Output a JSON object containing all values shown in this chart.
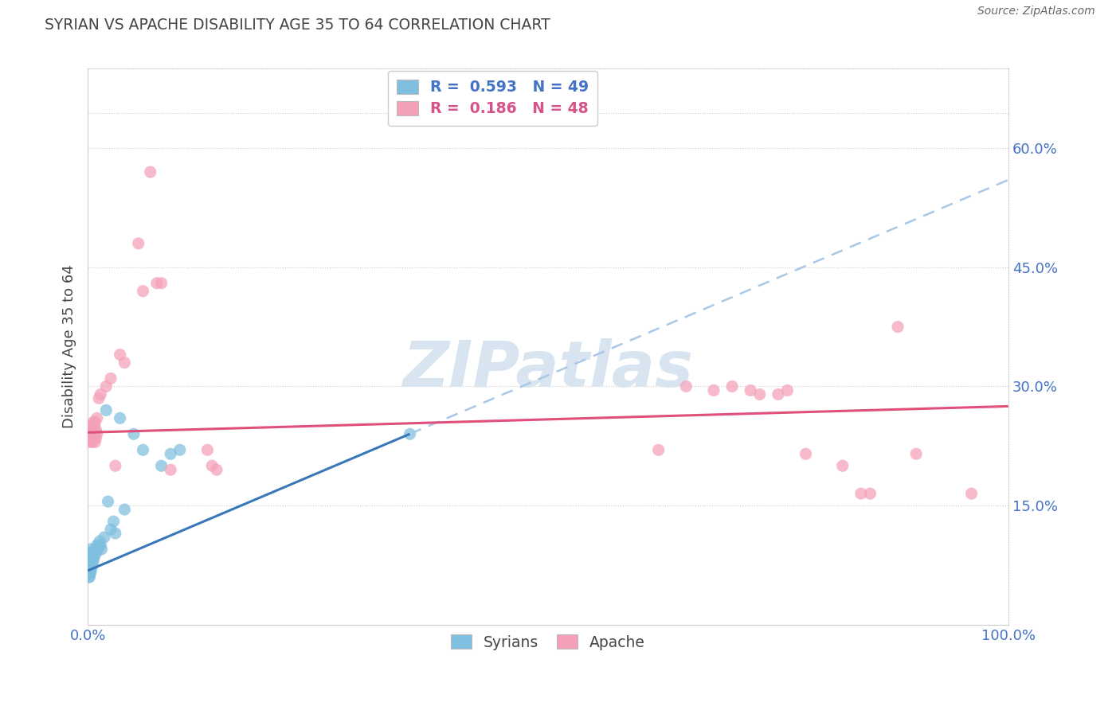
{
  "title": "SYRIAN VS APACHE DISABILITY AGE 35 TO 64 CORRELATION CHART",
  "source": "Source: ZipAtlas.com",
  "ylabel": "Disability Age 35 to 64",
  "xlim": [
    0.0,
    1.0
  ],
  "ylim": [
    0.0,
    0.7
  ],
  "xticks": [
    0.0,
    0.25,
    0.5,
    0.75,
    1.0
  ],
  "xticklabels": [
    "0.0%",
    "",
    "",
    "",
    "100.0%"
  ],
  "ytick_positions": [
    0.15,
    0.3,
    0.45,
    0.6
  ],
  "ytick_labels": [
    "15.0%",
    "30.0%",
    "45.0%",
    "60.0%"
  ],
  "legend_r_syrian": "0.593",
  "legend_n_syrian": "49",
  "legend_r_apache": "0.186",
  "legend_n_apache": "48",
  "syrian_color": "#7fbfdf",
  "apache_color": "#f4a0b8",
  "trendline_syrian_solid_color": "#3878b8",
  "trendline_apache_color": "#e0507a",
  "trendline_dashed_color": "#a8c8e8",
  "background_color": "#ffffff",
  "grid_color": "#cccccc",
  "title_color": "#444444",
  "source_color": "#666666",
  "tick_color": "#4472c4",
  "watermark_color": "#d8e4f0",
  "syrian_points": [
    [
      0.001,
      0.06
    ],
    [
      0.001,
      0.07
    ],
    [
      0.001,
      0.075
    ],
    [
      0.001,
      0.08
    ],
    [
      0.002,
      0.06
    ],
    [
      0.002,
      0.065
    ],
    [
      0.002,
      0.07
    ],
    [
      0.002,
      0.075
    ],
    [
      0.002,
      0.08
    ],
    [
      0.002,
      0.085
    ],
    [
      0.002,
      0.09
    ],
    [
      0.003,
      0.065
    ],
    [
      0.003,
      0.07
    ],
    [
      0.003,
      0.075
    ],
    [
      0.003,
      0.08
    ],
    [
      0.003,
      0.085
    ],
    [
      0.003,
      0.09
    ],
    [
      0.003,
      0.095
    ],
    [
      0.004,
      0.07
    ],
    [
      0.004,
      0.08
    ],
    [
      0.004,
      0.085
    ],
    [
      0.005,
      0.075
    ],
    [
      0.005,
      0.085
    ],
    [
      0.005,
      0.09
    ],
    [
      0.006,
      0.08
    ],
    [
      0.006,
      0.09
    ],
    [
      0.007,
      0.085
    ],
    [
      0.008,
      0.095
    ],
    [
      0.009,
      0.09
    ],
    [
      0.01,
      0.1
    ],
    [
      0.011,
      0.095
    ],
    [
      0.012,
      0.1
    ],
    [
      0.013,
      0.105
    ],
    [
      0.014,
      0.1
    ],
    [
      0.015,
      0.095
    ],
    [
      0.018,
      0.11
    ],
    [
      0.02,
      0.27
    ],
    [
      0.022,
      0.155
    ],
    [
      0.025,
      0.12
    ],
    [
      0.028,
      0.13
    ],
    [
      0.03,
      0.115
    ],
    [
      0.035,
      0.26
    ],
    [
      0.04,
      0.145
    ],
    [
      0.05,
      0.24
    ],
    [
      0.06,
      0.22
    ],
    [
      0.08,
      0.2
    ],
    [
      0.09,
      0.215
    ],
    [
      0.1,
      0.22
    ],
    [
      0.35,
      0.24
    ]
  ],
  "apache_points": [
    [
      0.002,
      0.24
    ],
    [
      0.003,
      0.23
    ],
    [
      0.003,
      0.25
    ],
    [
      0.004,
      0.235
    ],
    [
      0.004,
      0.245
    ],
    [
      0.005,
      0.23
    ],
    [
      0.005,
      0.24
    ],
    [
      0.006,
      0.245
    ],
    [
      0.006,
      0.255
    ],
    [
      0.007,
      0.235
    ],
    [
      0.007,
      0.25
    ],
    [
      0.008,
      0.23
    ],
    [
      0.008,
      0.255
    ],
    [
      0.009,
      0.235
    ],
    [
      0.009,
      0.245
    ],
    [
      0.01,
      0.24
    ],
    [
      0.01,
      0.26
    ],
    [
      0.012,
      0.285
    ],
    [
      0.014,
      0.29
    ],
    [
      0.02,
      0.3
    ],
    [
      0.025,
      0.31
    ],
    [
      0.03,
      0.2
    ],
    [
      0.035,
      0.34
    ],
    [
      0.04,
      0.33
    ],
    [
      0.055,
      0.48
    ],
    [
      0.06,
      0.42
    ],
    [
      0.068,
      0.57
    ],
    [
      0.075,
      0.43
    ],
    [
      0.08,
      0.43
    ],
    [
      0.09,
      0.195
    ],
    [
      0.13,
      0.22
    ],
    [
      0.135,
      0.2
    ],
    [
      0.14,
      0.195
    ],
    [
      0.62,
      0.22
    ],
    [
      0.65,
      0.3
    ],
    [
      0.68,
      0.295
    ],
    [
      0.7,
      0.3
    ],
    [
      0.72,
      0.295
    ],
    [
      0.73,
      0.29
    ],
    [
      0.75,
      0.29
    ],
    [
      0.76,
      0.295
    ],
    [
      0.78,
      0.215
    ],
    [
      0.82,
      0.2
    ],
    [
      0.84,
      0.165
    ],
    [
      0.85,
      0.165
    ],
    [
      0.88,
      0.375
    ],
    [
      0.9,
      0.215
    ],
    [
      0.96,
      0.165
    ]
  ],
  "trendline_solid_xrange": [
    0.0,
    0.35
  ],
  "trendline_dashed_xrange": [
    0.35,
    1.0
  ],
  "syrian_trend_x0": 0.0,
  "syrian_trend_y0": 0.068,
  "syrian_trend_x1": 1.0,
  "syrian_trend_y1": 0.56,
  "apache_trend_x0": 0.0,
  "apache_trend_y0": 0.242,
  "apache_trend_x1": 1.0,
  "apache_trend_y1": 0.275
}
